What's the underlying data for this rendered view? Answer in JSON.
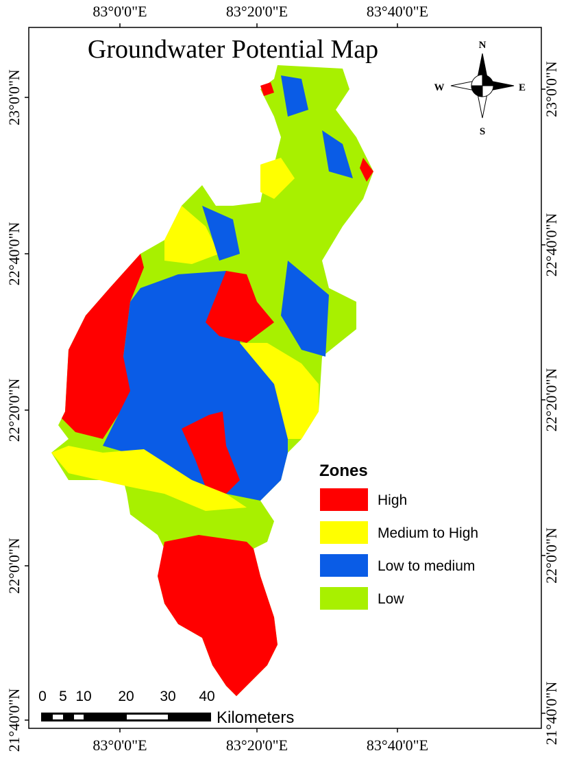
{
  "title": "Groundwater Potential Map",
  "grid_labels": {
    "top": [
      "83°0'0\"E",
      "83°20'0\"E",
      "83°40'0\"E"
    ],
    "bottom": [
      "83°0'0\"E",
      "83°20'0\"E",
      "83°40'0\"E"
    ],
    "left": [
      "23°0'0\"N",
      "22°40'0\"N",
      "22°20'0\"N",
      "22°0'0\"N",
      "21°40'0\"N"
    ],
    "right": [
      "23°0'0\"N",
      "22°40'0\"N",
      "22°20'0\"N",
      "22°0'0\"N",
      "21°40'0\"N"
    ]
  },
  "compass": {
    "n": "N",
    "s": "S",
    "e": "E",
    "w": "W"
  },
  "legend": {
    "title": "Zones",
    "items": [
      {
        "label": "High",
        "color": "#ff0000"
      },
      {
        "label": "Medium to High",
        "color": "#ffff00"
      },
      {
        "label": "Low to medium",
        "color": "#0a5ce6"
      },
      {
        "label": "Low",
        "color": "#a8f000"
      }
    ]
  },
  "scale_bar": {
    "labels": [
      "0",
      "5",
      "10",
      "20",
      "30",
      "40"
    ],
    "unit": "Kilometers"
  }
}
